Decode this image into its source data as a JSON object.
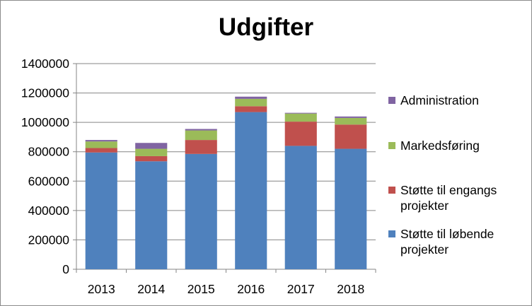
{
  "chart_data": {
    "type": "bar",
    "stacked": true,
    "title": "Udgifter",
    "xlabel": "",
    "ylabel": "",
    "categories": [
      "2013",
      "2014",
      "2015",
      "2016",
      "2017",
      "2018"
    ],
    "ylim": [
      0,
      1400000
    ],
    "yticks": [
      "0",
      "200000",
      "400000",
      "600000",
      "800000",
      "1000000",
      "1200000",
      "1400000"
    ],
    "grid": true,
    "legend_position": "right",
    "series": [
      {
        "name": "Støtte til løbende projekter",
        "color": "#4f81bd",
        "values": [
          795000,
          735000,
          785000,
          1070000,
          840000,
          820000
        ]
      },
      {
        "name": "Støtte til engangs projekter",
        "color": "#c0504d",
        "values": [
          30000,
          35000,
          95000,
          40000,
          165000,
          165000
        ]
      },
      {
        "name": "Markedsføring",
        "color": "#9bbb59",
        "values": [
          45000,
          50000,
          65000,
          50000,
          55000,
          45000
        ]
      },
      {
        "name": "Administration",
        "color": "#8064a2",
        "values": [
          10000,
          40000,
          10000,
          15000,
          5000,
          10000
        ]
      }
    ]
  },
  "legend": [
    {
      "label": "Administration",
      "color": "#8064a2"
    },
    {
      "label": "Markedsføring",
      "color": "#9bbb59"
    },
    {
      "label": "Støtte til engangs projekter",
      "color": "#c0504d"
    },
    {
      "label": "Støtte til løbende projekter",
      "color": "#4f81bd"
    }
  ]
}
